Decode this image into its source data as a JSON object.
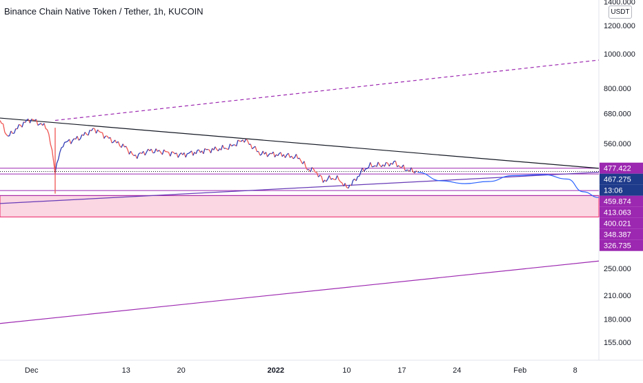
{
  "header": {
    "title": "Binance Chain Native Token / Tether, 1h, KUCOIN",
    "currency": "USDT"
  },
  "colors": {
    "up": "#26a69a",
    "down": "#ef5350",
    "trendline": "#131722",
    "channel": "#9c27b0",
    "support_line": "#673ab7",
    "projection": "#2962ff",
    "zone_fill": "#f8bbd0",
    "zone_border": "#e91e63",
    "tag_purple": "#9c27b0",
    "tag_current": "#1e3a8a"
  },
  "chart_data": {
    "type": "candlestick",
    "title": "Binance Chain Native Token / Tether, 1h, KUCOIN",
    "y_scale": "log",
    "ylim": [
      140,
      1400
    ],
    "x_range": [
      "2021-11-27",
      "2022-02-11"
    ],
    "y_ticks": [
      {
        "value": 1400,
        "label": "1400.000"
      },
      {
        "value": 1200,
        "label": "1200.000"
      },
      {
        "value": 1000,
        "label": "1000.000"
      },
      {
        "value": 800,
        "label": "800.000"
      },
      {
        "value": 680,
        "label": "680.000"
      },
      {
        "value": 560,
        "label": "560.000"
      },
      {
        "value": 250,
        "label": "250.000"
      },
      {
        "value": 210,
        "label": "210.000"
      },
      {
        "value": 180,
        "label": "180.000"
      },
      {
        "value": 155,
        "label": "155.000"
      }
    ],
    "x_ticks": [
      {
        "date": "2021-12-01",
        "label": "Dec",
        "bold": false
      },
      {
        "date": "2021-12-13",
        "label": "13",
        "bold": false
      },
      {
        "date": "2021-12-20",
        "label": "20",
        "bold": false
      },
      {
        "date": "2022-01-01",
        "label": "2022",
        "bold": true
      },
      {
        "date": "2022-01-10",
        "label": "10",
        "bold": false
      },
      {
        "date": "2022-01-17",
        "label": "17",
        "bold": false
      },
      {
        "date": "2022-01-24",
        "label": "24",
        "bold": false
      },
      {
        "date": "2022-02-01",
        "label": "Feb",
        "bold": false
      },
      {
        "date": "2022-02-08",
        "label": "8",
        "bold": false
      }
    ],
    "price_path": [
      {
        "x": "2021-11-27",
        "y": 650
      },
      {
        "x": "2021-11-28",
        "y": 585
      },
      {
        "x": "2021-11-30",
        "y": 640
      },
      {
        "x": "2021-12-01",
        "y": 655
      },
      {
        "x": "2021-12-03",
        "y": 620
      },
      {
        "x": "2021-12-04",
        "y": 470
      },
      {
        "x": "2021-12-05",
        "y": 560
      },
      {
        "x": "2021-12-07",
        "y": 580
      },
      {
        "x": "2021-12-09",
        "y": 615
      },
      {
        "x": "2021-12-11",
        "y": 575
      },
      {
        "x": "2021-12-13",
        "y": 545
      },
      {
        "x": "2021-12-14",
        "y": 515
      },
      {
        "x": "2021-12-16",
        "y": 535
      },
      {
        "x": "2021-12-18",
        "y": 530
      },
      {
        "x": "2021-12-20",
        "y": 520
      },
      {
        "x": "2021-12-23",
        "y": 535
      },
      {
        "x": "2021-12-26",
        "y": 545
      },
      {
        "x": "2021-12-28",
        "y": 575
      },
      {
        "x": "2021-12-30",
        "y": 525
      },
      {
        "x": "2022-01-02",
        "y": 520
      },
      {
        "x": "2022-01-04",
        "y": 510
      },
      {
        "x": "2022-01-05",
        "y": 475
      },
      {
        "x": "2022-01-06",
        "y": 470
      },
      {
        "x": "2022-01-07",
        "y": 440
      },
      {
        "x": "2022-01-08",
        "y": 448
      },
      {
        "x": "2022-01-09",
        "y": 445
      },
      {
        "x": "2022-01-10",
        "y": 420
      },
      {
        "x": "2022-01-11",
        "y": 440
      },
      {
        "x": "2022-01-12",
        "y": 470
      },
      {
        "x": "2022-01-13",
        "y": 485
      },
      {
        "x": "2022-01-15",
        "y": 488
      },
      {
        "x": "2022-01-16",
        "y": 495
      },
      {
        "x": "2022-01-17",
        "y": 480
      },
      {
        "x": "2022-01-18",
        "y": 470
      },
      {
        "x": "2022-01-19",
        "y": 467
      }
    ],
    "spike_low": {
      "x": "2021-12-04",
      "y": 405
    },
    "trendline": {
      "p1": {
        "x": "2021-11-27",
        "y": 660
      },
      "p2": {
        "x": "2022-02-11",
        "y": 477
      }
    },
    "dashed_line": {
      "p1": {
        "x": "2021-12-04",
        "y": 650
      },
      "p2": {
        "x": "2022-02-11",
        "y": 960
      }
    },
    "support_line": {
      "p1": {
        "x": "2021-11-27",
        "y": 380
      },
      "p2": {
        "x": "2022-02-11",
        "y": 465
      }
    },
    "channel_low": {
      "p1": {
        "x": "2021-11-27",
        "y": 175
      },
      "p2": {
        "x": "2022-02-11",
        "y": 262
      }
    },
    "projection": [
      {
        "x": "2022-01-19",
        "y": 465
      },
      {
        "x": "2022-01-22",
        "y": 440
      },
      {
        "x": "2022-01-25",
        "y": 432
      },
      {
        "x": "2022-01-28",
        "y": 438
      },
      {
        "x": "2022-01-31",
        "y": 455
      },
      {
        "x": "2022-02-04",
        "y": 458
      },
      {
        "x": "2022-02-07",
        "y": 445
      },
      {
        "x": "2022-02-09",
        "y": 410
      },
      {
        "x": "2022-02-11",
        "y": 395
      }
    ],
    "h_levels": [
      {
        "value": 477.422,
        "style": "solid"
      },
      {
        "value": 467.275,
        "style": "dotted"
      },
      {
        "value": 459.874,
        "style": "solid"
      },
      {
        "value": 413.063,
        "style": "solid"
      },
      {
        "value": 400.021,
        "style": "solid"
      }
    ],
    "zone": {
      "low": 348.387,
      "high": 400.021
    },
    "price_tags": [
      {
        "value": 477.422,
        "label": "477.422",
        "kind": "level"
      },
      {
        "value": 467.275,
        "label": "467.275",
        "kind": "current"
      },
      {
        "value": 467.275,
        "label": "13:06",
        "kind": "countdown"
      },
      {
        "value": 459.874,
        "label": "459.874",
        "kind": "level"
      },
      {
        "value": 413.063,
        "label": "413.063",
        "kind": "level"
      },
      {
        "value": 400.021,
        "label": "400.021",
        "kind": "level"
      },
      {
        "value": 348.387,
        "label": "348.387",
        "kind": "level"
      },
      {
        "value": 326.735,
        "label": "326.735",
        "kind": "level"
      }
    ]
  }
}
